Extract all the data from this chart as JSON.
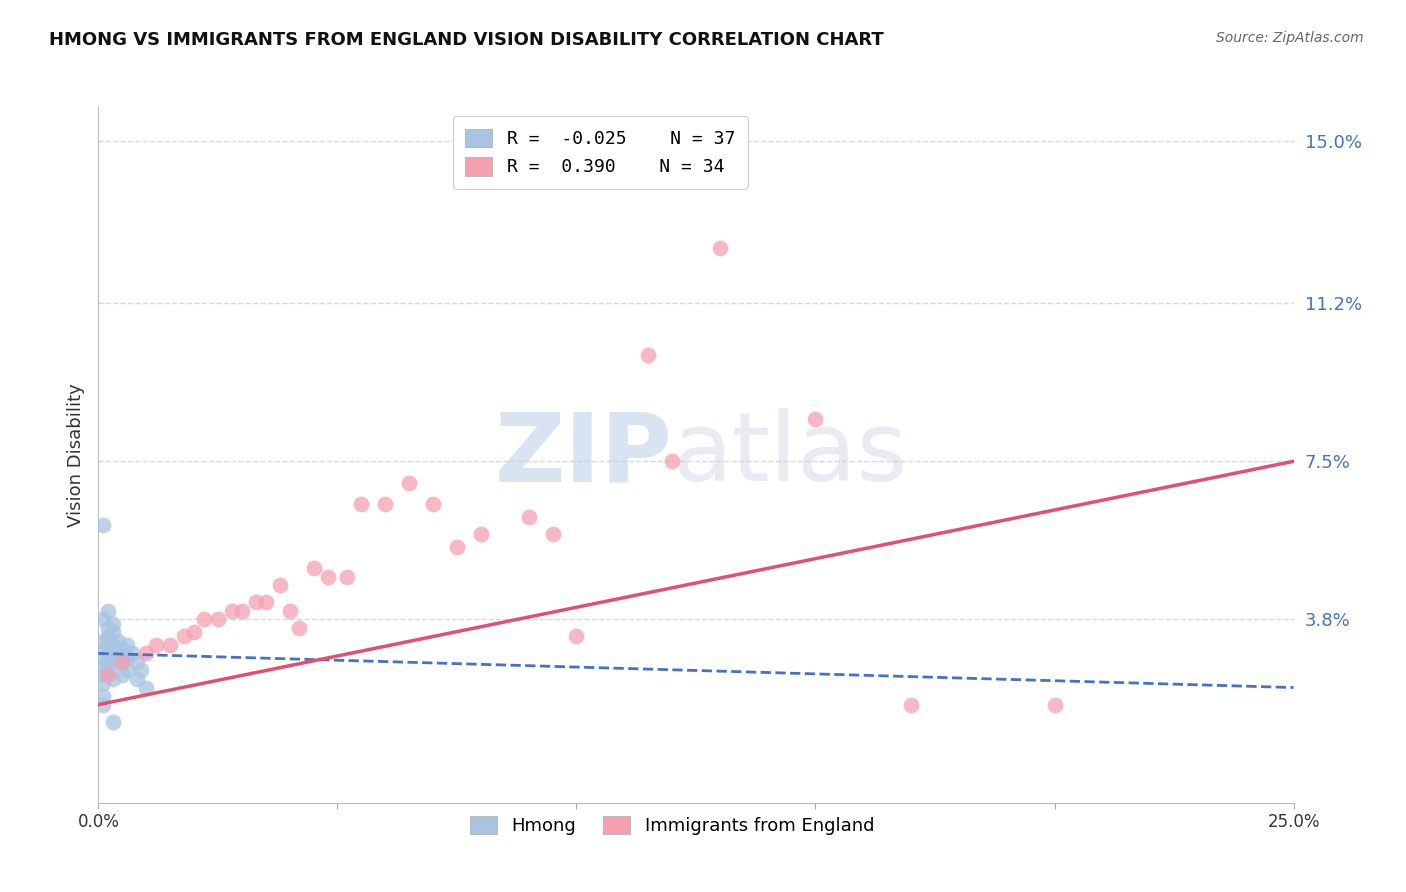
{
  "title": "HMONG VS IMMIGRANTS FROM ENGLAND VISION DISABILITY CORRELATION CHART",
  "source": "Source: ZipAtlas.com",
  "xlabel": "",
  "ylabel": "Vision Disability",
  "xlim": [
    0.0,
    0.25
  ],
  "ylim": [
    -0.005,
    0.158
  ],
  "yticks": [
    0.0,
    0.038,
    0.075,
    0.112,
    0.15
  ],
  "ytick_labels": [
    "",
    "3.8%",
    "7.5%",
    "11.2%",
    "15.0%"
  ],
  "xticks": [
    0.0,
    0.05,
    0.1,
    0.15,
    0.2,
    0.25
  ],
  "xtick_labels": [
    "0.0%",
    "",
    "",
    "",
    "",
    "25.0%"
  ],
  "hmong_R": -0.025,
  "hmong_N": 37,
  "england_R": 0.39,
  "england_N": 34,
  "hmong_color": "#a8c4e0",
  "england_color": "#f4a0b0",
  "hmong_line_color": "#4472c4",
  "england_line_color": "#e05070",
  "watermark_zip": "ZIP",
  "watermark_atlas": "atlas",
  "background_color": "#ffffff",
  "grid_color": "#d0d8e0",
  "hmong_x": [
    0.001,
    0.001,
    0.001,
    0.001,
    0.001,
    0.002,
    0.002,
    0.002,
    0.002,
    0.002,
    0.003,
    0.003,
    0.003,
    0.003,
    0.004,
    0.004,
    0.004,
    0.005,
    0.005,
    0.005,
    0.006,
    0.006,
    0.006,
    0.007,
    0.008,
    0.008,
    0.009,
    0.01,
    0.001,
    0.002,
    0.002,
    0.003,
    0.001,
    0.001,
    0.001,
    0.001,
    0.003
  ],
  "hmong_y": [
    0.033,
    0.031,
    0.029,
    0.027,
    0.025,
    0.034,
    0.032,
    0.03,
    0.028,
    0.026,
    0.035,
    0.032,
    0.029,
    0.024,
    0.033,
    0.03,
    0.028,
    0.031,
    0.028,
    0.025,
    0.032,
    0.029,
    0.026,
    0.03,
    0.028,
    0.024,
    0.026,
    0.022,
    0.038,
    0.036,
    0.04,
    0.037,
    0.023,
    0.02,
    0.018,
    0.06,
    0.014
  ],
  "england_x": [
    0.002,
    0.005,
    0.01,
    0.012,
    0.015,
    0.018,
    0.02,
    0.022,
    0.025,
    0.028,
    0.03,
    0.033,
    0.035,
    0.038,
    0.04,
    0.042,
    0.045,
    0.048,
    0.052,
    0.055,
    0.06,
    0.065,
    0.07,
    0.075,
    0.08,
    0.09,
    0.095,
    0.1,
    0.115,
    0.12,
    0.13,
    0.15,
    0.17,
    0.2
  ],
  "england_y": [
    0.025,
    0.028,
    0.03,
    0.032,
    0.032,
    0.034,
    0.035,
    0.038,
    0.038,
    0.04,
    0.04,
    0.042,
    0.042,
    0.046,
    0.04,
    0.036,
    0.05,
    0.048,
    0.048,
    0.065,
    0.065,
    0.07,
    0.065,
    0.055,
    0.058,
    0.062,
    0.058,
    0.034,
    0.1,
    0.075,
    0.125,
    0.085,
    0.018,
    0.018
  ],
  "hmong_trend_x": [
    0.0,
    0.25
  ],
  "hmong_trend_y": [
    0.03,
    0.022
  ],
  "england_trend_x": [
    0.0,
    0.25
  ],
  "england_trend_y": [
    0.018,
    0.075
  ]
}
